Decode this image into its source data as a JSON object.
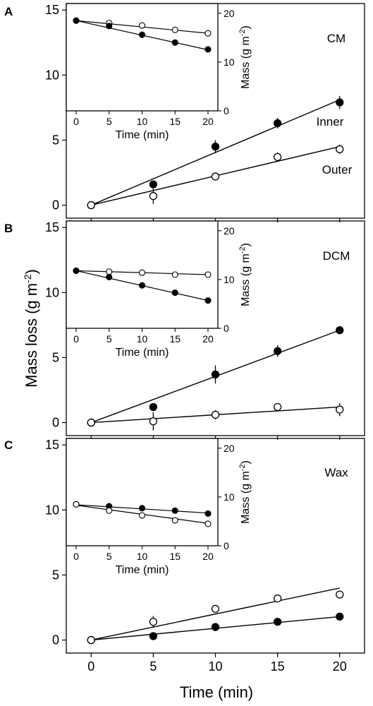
{
  "chart_data": [
    {
      "panel": "A",
      "type": "scatter",
      "tag": "CM",
      "xlabel": "Time (min)",
      "ylabel": "Mass loss (g m^-2)",
      "xlim": [
        -2,
        22
      ],
      "ylim": [
        -1,
        15.5
      ],
      "xticks": [
        0,
        5,
        10,
        15,
        20
      ],
      "yticks": [
        0,
        5,
        10,
        15
      ],
      "series": [
        {
          "name": "Inner",
          "marker": "filled",
          "x": [
            0,
            5,
            10,
            15,
            20
          ],
          "y": [
            0,
            1.6,
            4.5,
            6.3,
            7.9
          ],
          "err": [
            0.15,
            0.2,
            0.5,
            0.4,
            0.5
          ],
          "fit": [
            0,
            8.1
          ]
        },
        {
          "name": "Outer",
          "marker": "open",
          "x": [
            0,
            5,
            10,
            15,
            20
          ],
          "y": [
            0,
            0.7,
            2.2,
            3.7,
            4.3
          ],
          "err": [
            0.15,
            0.6,
            0.3,
            0.35,
            0.35
          ],
          "fit": [
            0,
            4.5
          ]
        }
      ],
      "inset": {
        "xlabel": "Time (min)",
        "ylabel": "Mass (g m^-2)",
        "xlim": [
          -1.5,
          21.5
        ],
        "ylim": [
          0,
          22
        ],
        "xticks": [
          0,
          5,
          10,
          15,
          20
        ],
        "yticks": [
          0,
          10,
          20
        ],
        "series": [
          {
            "marker": "open",
            "x": [
              0,
              5,
              10,
              15,
              20
            ],
            "y": [
              18.5,
              18.0,
              17.5,
              16.6,
              15.9
            ],
            "fit": [
              18.5,
              15.9
            ]
          },
          {
            "marker": "filled",
            "x": [
              0,
              5,
              10,
              15,
              20
            ],
            "y": [
              18.5,
              17.4,
              15.6,
              14.0,
              12.6
            ],
            "fit": [
              18.5,
              12.5
            ]
          }
        ]
      }
    },
    {
      "panel": "B",
      "type": "scatter",
      "tag": "DCM",
      "xlabel": "Time (min)",
      "ylabel": "Mass loss (g m^-2)",
      "xlim": [
        -2,
        22
      ],
      "ylim": [
        -1,
        15.5
      ],
      "xticks": [
        0,
        5,
        10,
        15,
        20
      ],
      "yticks": [
        0,
        5,
        10,
        15
      ],
      "series": [
        {
          "name": "Inner",
          "marker": "filled",
          "x": [
            0,
            5,
            10,
            15,
            20
          ],
          "y": [
            0,
            1.2,
            3.7,
            5.5,
            7.1
          ],
          "err": [
            0.15,
            0.15,
            0.7,
            0.45,
            0.2
          ],
          "fit": [
            0,
            7.1
          ]
        },
        {
          "name": "Outer",
          "marker": "open",
          "x": [
            0,
            5,
            10,
            15,
            20
          ],
          "y": [
            0,
            0.1,
            0.6,
            1.2,
            1.0
          ],
          "err": [
            0.15,
            0.7,
            0.35,
            0.25,
            0.5
          ],
          "fit": [
            0,
            1.2
          ]
        }
      ],
      "inset": {
        "xlabel": "Time (min)",
        "ylabel": "Mass (g m^-2)",
        "xlim": [
          -1.5,
          21.5
        ],
        "ylim": [
          0,
          22
        ],
        "xticks": [
          0,
          5,
          10,
          15,
          20
        ],
        "yticks": [
          0,
          10,
          20
        ],
        "series": [
          {
            "marker": "open",
            "x": [
              0,
              5,
              10,
              15,
              20
            ],
            "y": [
              11.8,
              11.6,
              11.4,
              11.0,
              11.0
            ],
            "fit": [
              11.8,
              11.0
            ]
          },
          {
            "marker": "filled",
            "x": [
              0,
              5,
              10,
              15,
              20
            ],
            "y": [
              11.8,
              10.5,
              8.8,
              7.3,
              5.7
            ],
            "fit": [
              11.8,
              5.7
            ]
          }
        ]
      }
    },
    {
      "panel": "C",
      "type": "scatter",
      "tag": "Wax",
      "xlabel": "Time (min)",
      "ylabel": "Mass loss (g m^-2)",
      "xlim": [
        -2,
        22
      ],
      "ylim": [
        -1,
        15.5
      ],
      "xticks": [
        0,
        5,
        10,
        15,
        20
      ],
      "yticks": [
        0,
        5,
        10,
        15
      ],
      "series": [
        {
          "name": "Inner",
          "marker": "filled",
          "x": [
            0,
            5,
            10,
            15,
            20
          ],
          "y": [
            0,
            0.3,
            1.0,
            1.4,
            1.8
          ],
          "err": [
            0.1,
            0.15,
            0.3,
            0.2,
            0.15
          ],
          "fit": [
            0,
            1.8
          ]
        },
        {
          "name": "Outer",
          "marker": "open",
          "x": [
            0,
            5,
            10,
            15,
            20
          ],
          "y": [
            0,
            1.4,
            2.4,
            3.2,
            3.5
          ],
          "err": [
            0.1,
            0.45,
            0.25,
            0.2,
            0.3
          ],
          "fit": [
            0,
            4.0
          ]
        }
      ],
      "inset": {
        "xlabel": "Time (min)",
        "ylabel": "Mass (g m^-2)",
        "xlim": [
          -1.5,
          21.5
        ],
        "ylim": [
          0,
          22
        ],
        "xticks": [
          0,
          5,
          10,
          15,
          20
        ],
        "yticks": [
          0,
          10,
          20
        ],
        "series": [
          {
            "marker": "filled",
            "x": [
              0,
              5,
              10,
              15,
              20
            ],
            "y": [
              8.5,
              8.1,
              7.7,
              7.2,
              6.6
            ],
            "fit": [
              8.4,
              6.7
            ]
          },
          {
            "marker": "open",
            "x": [
              0,
              5,
              10,
              15,
              20
            ],
            "y": [
              8.5,
              7.2,
              6.2,
              5.2,
              4.5
            ],
            "fit": [
              8.3,
              4.6
            ]
          }
        ]
      }
    }
  ],
  "labels": {
    "panel_a": "A",
    "panel_b": "B",
    "panel_c": "C",
    "tag_a": "CM",
    "tag_b": "DCM",
    "tag_c": "Wax",
    "series_inner": "Inner",
    "series_outer": "Outer",
    "x_axis": "Time (min)",
    "y_axis_main": "Mass loss (g m",
    "y_axis_main_sup": "-2",
    "y_axis_main_close": ")",
    "inset_x_axis": "Time (min)",
    "inset_y_axis": "Mass (g m",
    "inset_y_axis_sup": "-2",
    "inset_y_axis_close": ")"
  }
}
